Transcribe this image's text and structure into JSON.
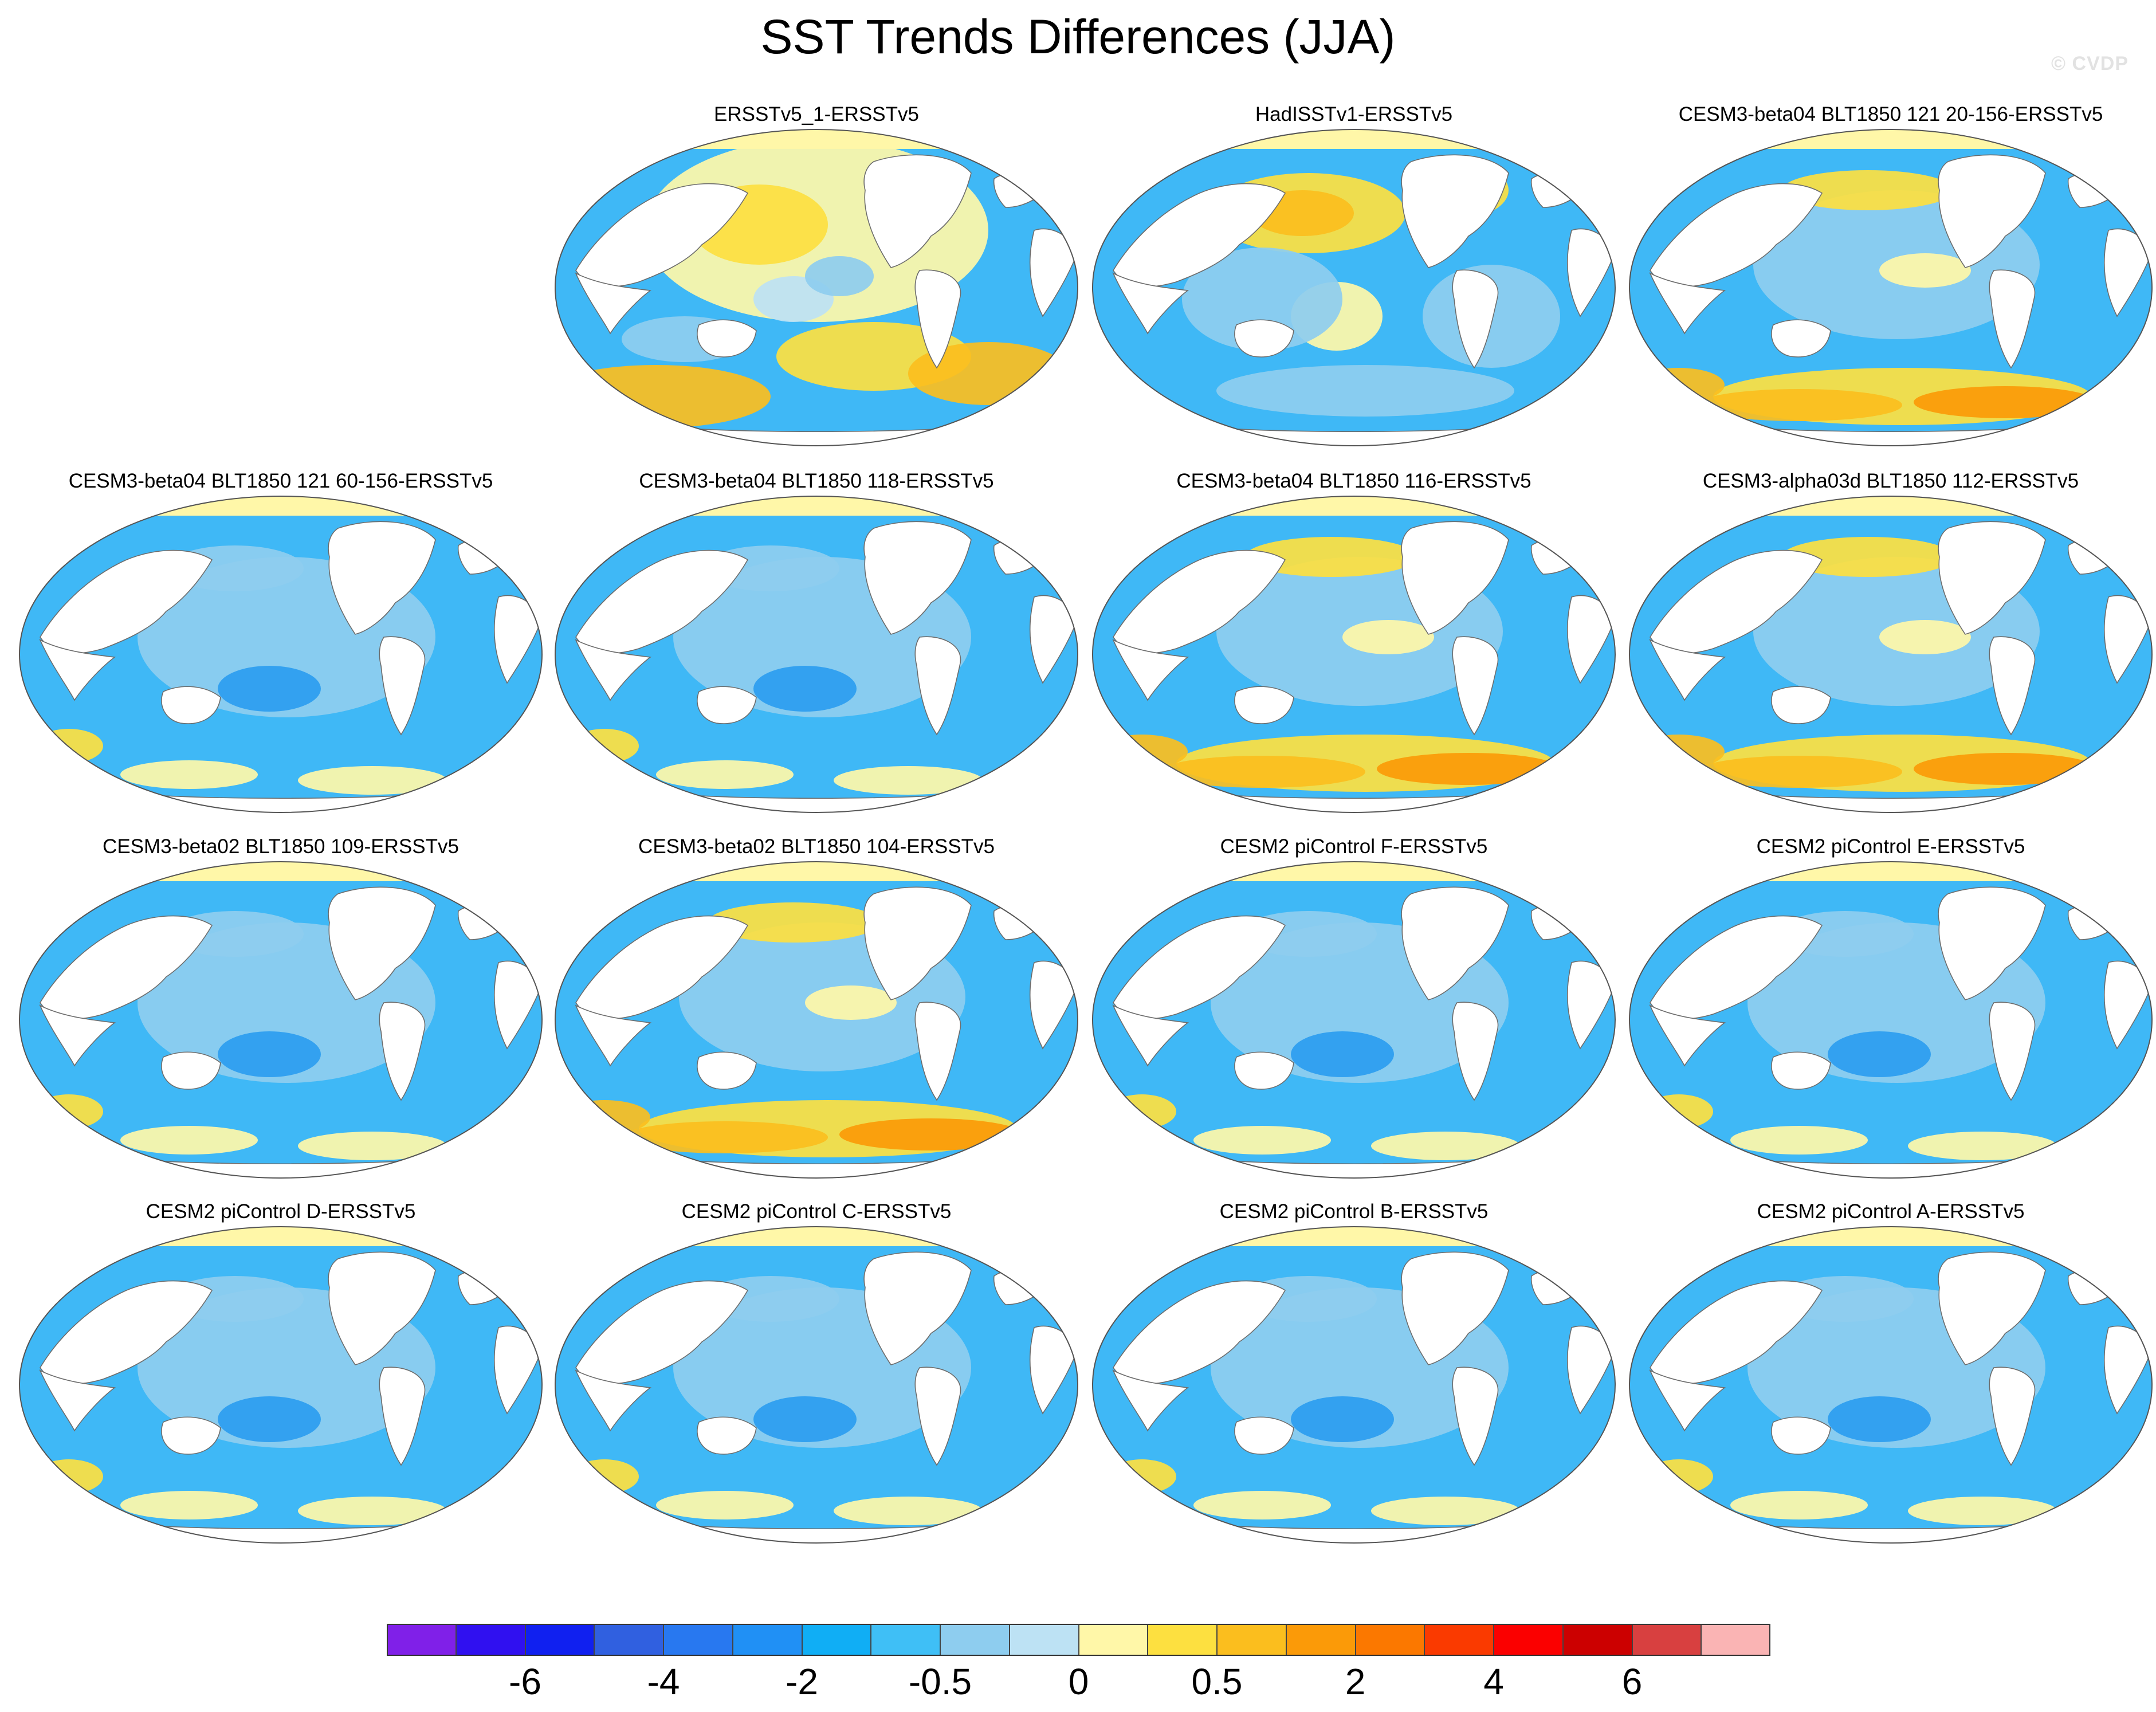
{
  "title": "SST Trends Differences (JJA)",
  "watermark": "© CVDP",
  "colors": {
    "ocean_blue": "#3fb8f6",
    "ocean_light": "#8ecdef",
    "land": "#ffffff",
    "coast": "#6d6d6d"
  },
  "chart_data": {
    "type": "heatmap",
    "projection": "global-robinson",
    "variable": "SST trend difference",
    "season": "JJA",
    "panels": [
      {
        "label": "ERSSTv5_1-ERSSTv5",
        "pattern": "warm"
      },
      {
        "label": "HadISSTv1-ERSSTv5",
        "pattern": "mixed"
      },
      {
        "label": "CESM3-beta04 BLT1850 121 20-156-ERSSTv5",
        "pattern": "cool-warm-south"
      },
      {
        "label": "CESM3-beta04 BLT1850 121 60-156-ERSSTv5",
        "pattern": "cool"
      },
      {
        "label": "CESM3-beta04 BLT1850 118-ERSSTv5",
        "pattern": "cool"
      },
      {
        "label": "CESM3-beta04 BLT1850 116-ERSSTv5",
        "pattern": "cool-warm-south"
      },
      {
        "label": "CESM3-alpha03d BLT1850 112-ERSSTv5",
        "pattern": "cool-warm-south"
      },
      {
        "label": "CESM3-beta02 BLT1850 109-ERSSTv5",
        "pattern": "cool"
      },
      {
        "label": "CESM3-beta02 BLT1850 104-ERSSTv5",
        "pattern": "cool-warm-south"
      },
      {
        "label": "CESM2 piControl F-ERSSTv5",
        "pattern": "cool"
      },
      {
        "label": "CESM2 piControl E-ERSSTv5",
        "pattern": "cool"
      },
      {
        "label": "CESM2 piControl D-ERSSTv5",
        "pattern": "cool"
      },
      {
        "label": "CESM2 piControl C-ERSSTv5",
        "pattern": "cool"
      },
      {
        "label": "CESM2 piControl B-ERSSTv5",
        "pattern": "cool"
      },
      {
        "label": "CESM2 piControl A-ERSSTv5",
        "pattern": "cool"
      }
    ],
    "colorbar": {
      "colors": [
        "#8020e8",
        "#3010f0",
        "#1020f0",
        "#3060e0",
        "#2878f0",
        "#2090f5",
        "#10aef5",
        "#3fbff6",
        "#8ecdef",
        "#bde2f4",
        "#fff7a8",
        "#fde040",
        "#fbbe1e",
        "#fb9a08",
        "#fb7800",
        "#fa3a00",
        "#fb0000",
        "#cc0000",
        "#d84040",
        "#fab4b4"
      ],
      "tick_labels": [
        "-6",
        "-4",
        "-2",
        "-0.5",
        "0",
        "0.5",
        "2",
        "4",
        "6"
      ],
      "tick_boundaries": [
        2,
        4,
        6,
        8,
        10,
        12,
        14,
        16,
        18
      ]
    }
  }
}
